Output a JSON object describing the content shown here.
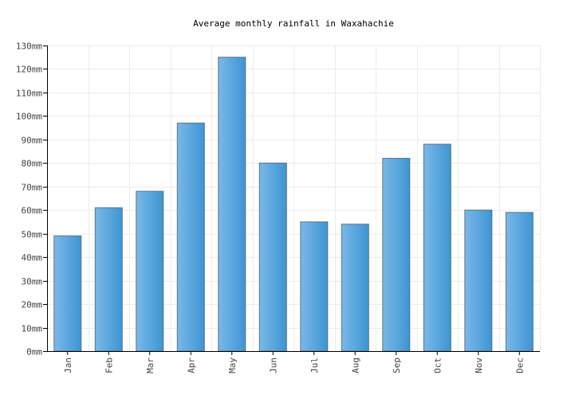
{
  "chart_data": {
    "type": "bar",
    "title": "Average monthly rainfall in Waxahachie",
    "categories": [
      "Jan",
      "Feb",
      "Mar",
      "Apr",
      "May",
      "Jun",
      "Jul",
      "Aug",
      "Sep",
      "Oct",
      "Nov",
      "Dec"
    ],
    "values": [
      49,
      61,
      68,
      97,
      125,
      80,
      55,
      54,
      82,
      88,
      60,
      59
    ],
    "y_unit": "mm",
    "ylim": [
      0,
      130
    ],
    "yticks": [
      0,
      10,
      20,
      30,
      40,
      50,
      60,
      70,
      80,
      90,
      100,
      110,
      120,
      130
    ],
    "grid": true,
    "bar_color_light": "#7ab8e8",
    "bar_color_dark": "#3d95d2"
  }
}
